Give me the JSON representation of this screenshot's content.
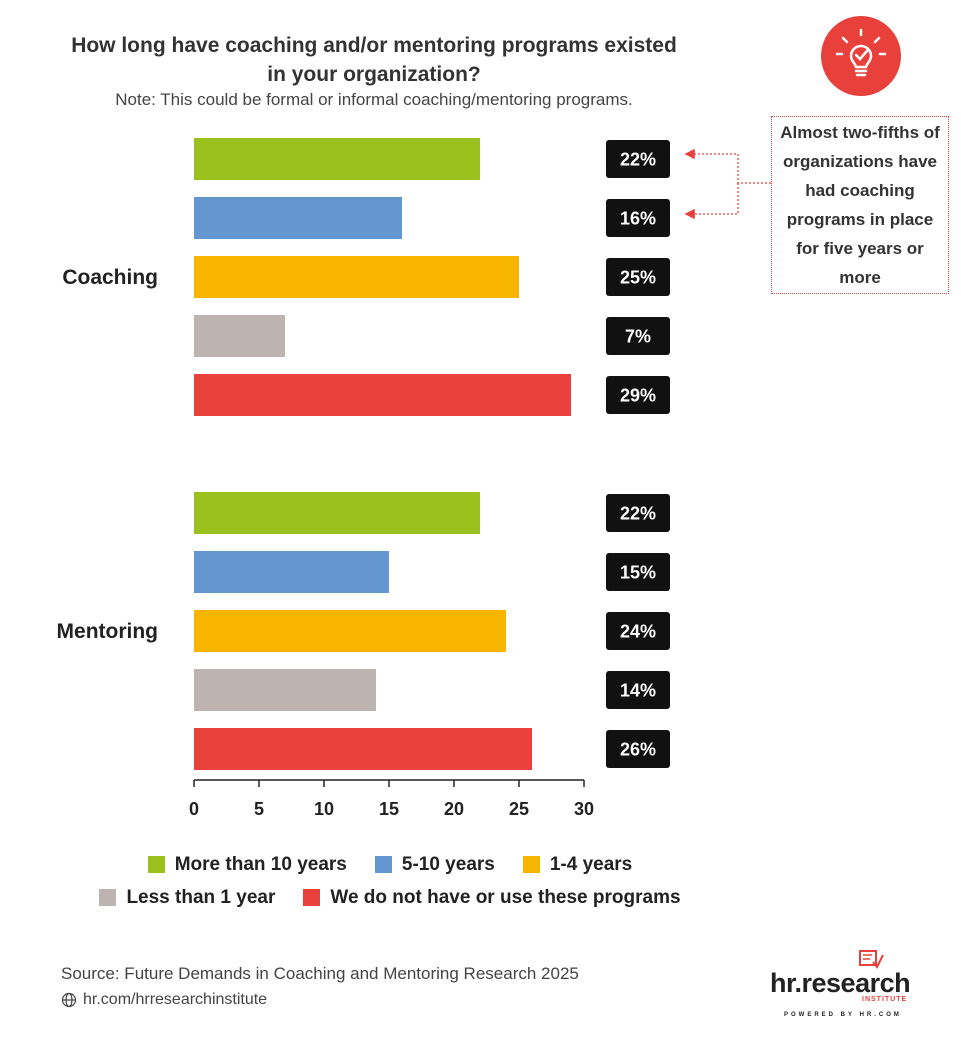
{
  "header": {
    "title_line1": "How long have coaching and/or mentoring programs existed",
    "title_line2": "in your organization?",
    "subtitle": "Note: This could be formal or informal coaching/mentoring programs.",
    "icon": "lightbulb-check-icon"
  },
  "callout": {
    "text": "Almost two-fifths of organizations have had coaching programs in place for five years or more"
  },
  "chart_data": {
    "type": "bar",
    "orientation": "horizontal",
    "groups": [
      "Coaching",
      "Mentoring"
    ],
    "series": [
      {
        "name": "More than 10 years",
        "color": "#9bc11e",
        "values": [
          22,
          22
        ]
      },
      {
        "name": "5-10 years",
        "color": "#6497d0",
        "values": [
          16,
          15
        ]
      },
      {
        "name": "1-4 years",
        "color": "#f7b500",
        "values": [
          25,
          24
        ]
      },
      {
        "name": "Less than 1 year",
        "color": "#bdb3b0",
        "values": [
          7,
          14
        ]
      },
      {
        "name": "We do not have or use these programs",
        "color": "#e8413b",
        "values": [
          29,
          26
        ]
      }
    ],
    "data_labels": [
      [
        "22%",
        "16%",
        "25%",
        "7%",
        "29%"
      ],
      [
        "22%",
        "15%",
        "24%",
        "14%",
        "26%"
      ]
    ],
    "xlim": [
      0,
      30
    ],
    "xticks": [
      "0",
      "5",
      "10",
      "15",
      "20",
      "25",
      "30"
    ],
    "grid": false,
    "legend_position": "bottom"
  },
  "legend": {
    "row1": [
      "More than 10 years",
      "5-10 years",
      "1-4 years"
    ],
    "row2": [
      "Less than 1 year",
      "We do not have or use these programs"
    ]
  },
  "footer": {
    "source": "Source:  Future Demands in Coaching and Mentoring Research 2025",
    "website": "hr.com/hrresearchinstitute",
    "logo_main": "hr.research",
    "logo_sub": "INSTITUTE",
    "logo_powered": "POWERED BY HR.COM"
  }
}
